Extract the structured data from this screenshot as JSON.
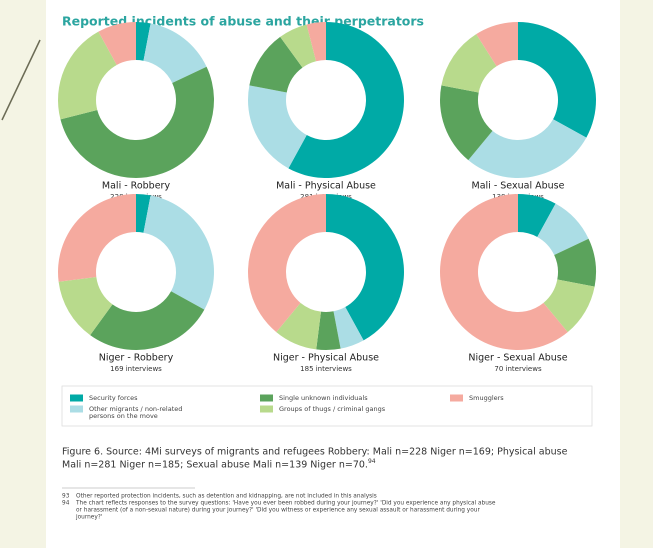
{
  "title": "Reported incidents of abuse and their perpetrators",
  "legend": {
    "labels": [
      [
        "Security forces"
      ],
      [
        "Other migrants / non-related",
        "persons on the move"
      ],
      [
        "Single unknown individuals"
      ],
      [
        "Groups of thugs / criminal gangs"
      ],
      [
        "Smugglers"
      ]
    ],
    "colors": [
      "#00aaa6",
      "#abdde5",
      "#5ba35c",
      "#b8da8c",
      "#f5aa9f"
    ]
  },
  "chart_data": [
    {
      "type": "pie",
      "title": "Mali - Robbery",
      "subtitle": "228 interviews",
      "values": [
        3,
        15,
        53,
        21,
        8
      ]
    },
    {
      "type": "pie",
      "title": "Mali - Physical Abuse",
      "subtitle": "281 interviews",
      "values": [
        58,
        20,
        12,
        6,
        4
      ]
    },
    {
      "type": "pie",
      "title": "Mali - Sexual Abuse",
      "subtitle": "139 interviews",
      "values": [
        33,
        28,
        17,
        13,
        9
      ]
    },
    {
      "type": "pie",
      "title": "Niger - Robbery",
      "subtitle": "169 interviews",
      "values": [
        3,
        30,
        27,
        13,
        27
      ]
    },
    {
      "type": "pie",
      "title": "Niger - Physical Abuse",
      "subtitle": "185 interviews",
      "values": [
        42,
        5,
        5,
        9,
        39
      ]
    },
    {
      "type": "pie",
      "title": "Niger - Sexual Abuse",
      "subtitle": "70 interviews",
      "values": [
        8,
        10,
        10,
        11,
        61
      ]
    }
  ],
  "caption": {
    "lines": [
      "Figure 6. Source: 4Mi surveys of migrants and refugees Robbery: Mali n=228 Niger n=169; Physical abuse",
      "Mali n=281 Niger n=185; Sexual abuse Mali n=139 Niger n=70."
    ],
    "note": "94"
  },
  "footnotes": [
    {
      "number": "93",
      "lines": [
        "Other reported protection incidents, such as detention and kidnapping, are not included in this analysis"
      ]
    },
    {
      "number": "94",
      "lines": [
        "The chart reflects responses to the survey questions: 'Have you ever been robbed during your journey?' 'Did you experience any physical abuse",
        "or harassment (of a non-sexual nature) during your journey?' 'Did you witness or experience any sexual assault or harassment during your",
        "journey?'"
      ]
    }
  ]
}
